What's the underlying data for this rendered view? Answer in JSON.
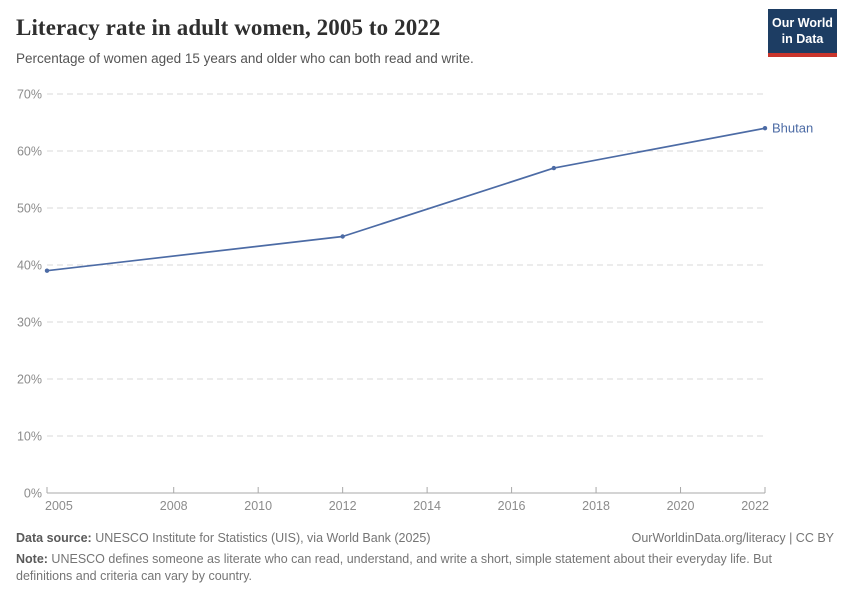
{
  "header": {
    "title": "Literacy rate in adult women, 2005 to 2022",
    "subtitle": "Percentage of women aged 15 years and older who can both read and write.",
    "logo": {
      "line1": "Our World",
      "line2": "in Data"
    }
  },
  "colors": {
    "line": "#4c6ba5",
    "entity_label": "#4c6ba5",
    "grid": "#dadada",
    "axis": "#a8a8a8",
    "tick_label": "#8c8c8c",
    "logo_bg": "#1d3d63",
    "logo_stripe": "#c9352c"
  },
  "chart_data": {
    "type": "line",
    "title": "Literacy rate in adult women, 2005 to 2022",
    "x": [
      2005,
      2012,
      2017,
      2022
    ],
    "series": [
      {
        "name": "Bhutan",
        "values": [
          39,
          45,
          57,
          64
        ]
      }
    ],
    "xlabel": "",
    "ylabel": "",
    "xlim": [
      2005,
      2022
    ],
    "ylim": [
      0,
      70
    ],
    "x_ticks": [
      2005,
      2008,
      2010,
      2012,
      2014,
      2016,
      2018,
      2020,
      2022
    ],
    "y_ticks": [
      0,
      10,
      20,
      30,
      40,
      50,
      60,
      70
    ],
    "y_tick_suffix": "%",
    "grid": "horizontal-dashed",
    "legend_position": "line-end-label",
    "markers": true
  },
  "footer": {
    "datasource_label": "Data source:",
    "datasource_text": " UNESCO Institute for Statistics (UIS), via World Bank (2025)",
    "license_text": "OurWorldinData.org/literacy | CC BY",
    "note_label": "Note:",
    "note_text": " UNESCO defines someone as literate who can read, understand, and write a short, simple statement about their everyday life. But definitions and criteria can vary by country."
  }
}
